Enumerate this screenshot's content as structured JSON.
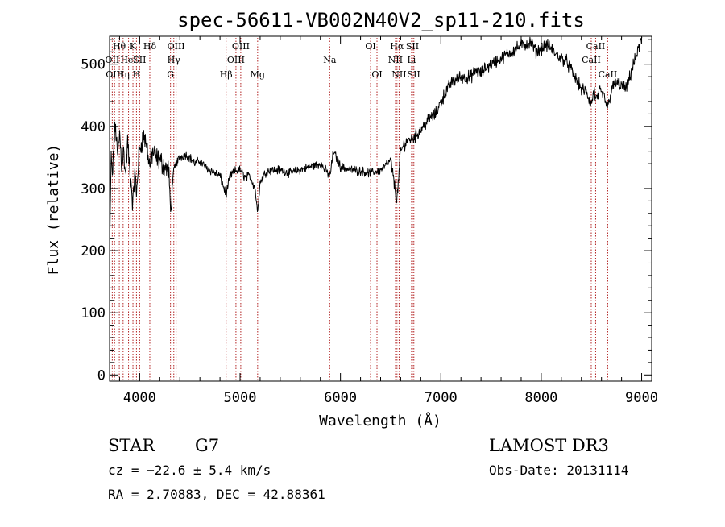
{
  "chart_data": {
    "type": "line",
    "title": "spec-56611-VB002N40V2_sp11-210.fits",
    "xlabel": "Wavelength (Å)",
    "ylabel": "Flux (relative)",
    "xlim": [
      3700,
      9100
    ],
    "ylim": [
      -10,
      545
    ],
    "xticks": [
      4000,
      5000,
      6000,
      7000,
      8000,
      9000
    ],
    "yticks": [
      0,
      100,
      200,
      300,
      400,
      500
    ],
    "grid": false,
    "spectrum_color": "#000000",
    "line_marker_color": "#b22222",
    "spectrum_anchors": [
      [
        3700,
        175
      ],
      [
        3715,
        350
      ],
      [
        3730,
        320
      ],
      [
        3745,
        380
      ],
      [
        3760,
        400
      ],
      [
        3780,
        350
      ],
      [
        3800,
        390
      ],
      [
        3820,
        340
      ],
      [
        3840,
        360
      ],
      [
        3860,
        320
      ],
      [
        3880,
        375
      ],
      [
        3900,
        330
      ],
      [
        3920,
        300
      ],
      [
        3933,
        270
      ],
      [
        3950,
        330
      ],
      [
        3968,
        290
      ],
      [
        3990,
        350
      ],
      [
        4010,
        370
      ],
      [
        4040,
        385
      ],
      [
        4070,
        370
      ],
      [
        4101,
        335
      ],
      [
        4130,
        360
      ],
      [
        4160,
        350
      ],
      [
        4200,
        345
      ],
      [
        4250,
        335
      ],
      [
        4290,
        330
      ],
      [
        4310,
        255
      ],
      [
        4330,
        320
      ],
      [
        4360,
        340
      ],
      [
        4400,
        350
      ],
      [
        4450,
        355
      ],
      [
        4500,
        350
      ],
      [
        4550,
        340
      ],
      [
        4600,
        345
      ],
      [
        4650,
        335
      ],
      [
        4700,
        330
      ],
      [
        4750,
        325
      ],
      [
        4800,
        320
      ],
      [
        4861,
        290
      ],
      [
        4900,
        320
      ],
      [
        4950,
        328
      ],
      [
        5000,
        330
      ],
      [
        5050,
        318
      ],
      [
        5100,
        320
      ],
      [
        5150,
        300
      ],
      [
        5172,
        262
      ],
      [
        5200,
        310
      ],
      [
        5250,
        325
      ],
      [
        5300,
        330
      ],
      [
        5400,
        330
      ],
      [
        5500,
        325
      ],
      [
        5600,
        330
      ],
      [
        5700,
        335
      ],
      [
        5800,
        340
      ],
      [
        5895,
        320
      ],
      [
        5930,
        360
      ],
      [
        6000,
        335
      ],
      [
        6100,
        330
      ],
      [
        6200,
        328
      ],
      [
        6300,
        325
      ],
      [
        6400,
        330
      ],
      [
        6500,
        345
      ],
      [
        6563,
        280
      ],
      [
        6600,
        360
      ],
      [
        6650,
        375
      ],
      [
        6700,
        380
      ],
      [
        6750,
        385
      ],
      [
        6800,
        395
      ],
      [
        6850,
        405
      ],
      [
        6900,
        415
      ],
      [
        6950,
        420
      ],
      [
        7000,
        440
      ],
      [
        7050,
        455
      ],
      [
        7100,
        470
      ],
      [
        7150,
        475
      ],
      [
        7200,
        480
      ],
      [
        7250,
        478
      ],
      [
        7300,
        480
      ],
      [
        7350,
        490
      ],
      [
        7400,
        485
      ],
      [
        7450,
        495
      ],
      [
        7500,
        500
      ],
      [
        7600,
        510
      ],
      [
        7700,
        520
      ],
      [
        7800,
        530
      ],
      [
        7900,
        535
      ],
      [
        7950,
        520
      ],
      [
        8000,
        525
      ],
      [
        8050,
        530
      ],
      [
        8100,
        525
      ],
      [
        8150,
        515
      ],
      [
        8200,
        510
      ],
      [
        8250,
        505
      ],
      [
        8300,
        490
      ],
      [
        8350,
        475
      ],
      [
        8400,
        460
      ],
      [
        8450,
        455
      ],
      [
        8498,
        435
      ],
      [
        8530,
        460
      ],
      [
        8542,
        440
      ],
      [
        8580,
        455
      ],
      [
        8620,
        450
      ],
      [
        8662,
        430
      ],
      [
        8700,
        460
      ],
      [
        8750,
        470
      ],
      [
        8800,
        465
      ],
      [
        8850,
        460
      ],
      [
        8900,
        490
      ],
      [
        8950,
        515
      ],
      [
        9000,
        540
      ],
      [
        9005,
        560
      ]
    ],
    "emission_lines": [
      {
        "name": "Hθ",
        "wavelength": 3797,
        "row": 0
      },
      {
        "name": "OII",
        "wavelength": 3727,
        "row": 1
      },
      {
        "name": "OIII",
        "wavelength": 3750,
        "row": 2
      },
      {
        "name": "Hη",
        "wavelength": 3835,
        "row": 2
      },
      {
        "name": "HeI",
        "wavelength": 3889,
        "row": 1
      },
      {
        "name": "K",
        "wavelength": 3933,
        "row": 0
      },
      {
        "name": "SII",
        "wavelength": 4000,
        "row": 1
      },
      {
        "name": "H",
        "wavelength": 3968,
        "row": 2
      },
      {
        "name": "Hδ",
        "wavelength": 4101,
        "row": 0
      },
      {
        "name": "OIII",
        "wavelength": 4363,
        "row": 0
      },
      {
        "name": "Hγ",
        "wavelength": 4340,
        "row": 1
      },
      {
        "name": "G",
        "wavelength": 4307,
        "row": 2
      },
      {
        "name": "Hβ",
        "wavelength": 4861,
        "row": 2
      },
      {
        "name": "OIII",
        "wavelength": 5007,
        "row": 0
      },
      {
        "name": "OIII",
        "wavelength": 4959,
        "row": 1
      },
      {
        "name": "Mg",
        "wavelength": 5175,
        "row": 2
      },
      {
        "name": "Na",
        "wavelength": 5893,
        "row": 1
      },
      {
        "name": "OI",
        "wavelength": 6300,
        "row": 0
      },
      {
        "name": "OI",
        "wavelength": 6364,
        "row": 2
      },
      {
        "name": "Hα",
        "wavelength": 6563,
        "row": 0
      },
      {
        "name": "NII",
        "wavelength": 6548,
        "row": 1
      },
      {
        "name": "NII",
        "wavelength": 6584,
        "row": 2
      },
      {
        "name": "SII",
        "wavelength": 6717,
        "row": 0
      },
      {
        "name": "Li",
        "wavelength": 6708,
        "row": 1
      },
      {
        "name": "SII",
        "wavelength": 6731,
        "row": 2
      },
      {
        "name": "CaII",
        "wavelength": 8542,
        "row": 0
      },
      {
        "name": "CaII",
        "wavelength": 8498,
        "row": 1
      },
      {
        "name": "CaII",
        "wavelength": 8662,
        "row": 2
      }
    ]
  },
  "info": {
    "object_class": "STAR",
    "subclass": "G7",
    "survey": "LAMOST DR3",
    "redshift": "cz = −22.6 ± 5.4 km/s",
    "obs_date": "Obs-Date: 20131114",
    "coords": "RA =   2.70883, DEC =  42.88361"
  }
}
